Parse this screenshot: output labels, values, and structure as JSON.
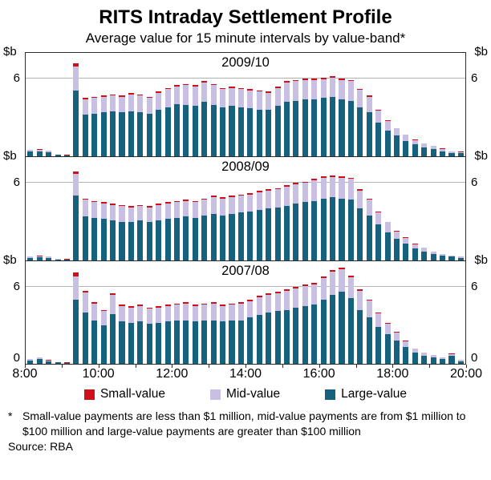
{
  "header": {
    "title": "RITS Intraday Settlement Profile",
    "subtitle": "Average value for 15 minute intervals by value-band*"
  },
  "colors": {
    "small": "#cf1019",
    "mid": "#c8bfe2",
    "large": "#16627e",
    "gridline": "#b3b3b3"
  },
  "y_axis": {
    "unit": "$b",
    "tick_label": "6",
    "zero_label": "0",
    "max": 8,
    "gridlines": [
      6
    ]
  },
  "x_axis": {
    "tick_labels": [
      "8:00",
      "10:00",
      "12:00",
      "14:00",
      "16:00",
      "18:00",
      "20:00"
    ]
  },
  "legend": {
    "items": [
      {
        "label": "Small-value",
        "color": "#cf1019"
      },
      {
        "label": "Mid-value",
        "color": "#c8bfe2"
      },
      {
        "label": "Large-value",
        "color": "#16627e"
      }
    ]
  },
  "footnote": {
    "marker": "*",
    "text": "Small-value payments are less than $1 million, mid-value payments are from $1 million to $100 million and large-value payments are greater than $100 million"
  },
  "source": "Source: RBA",
  "chart_data": [
    {
      "type": "bar",
      "stacked": true,
      "title": "2009/10",
      "x_start": "8:00",
      "x_end": "20:00",
      "interval_minutes": 15,
      "ylim": [
        0,
        8
      ],
      "ylabel": "$b",
      "series": [
        {
          "name": "Large-value",
          "color_key": "large",
          "values": [
            0.35,
            0.4,
            0.3,
            0.1,
            0.07,
            5.1,
            3.2,
            3.3,
            3.4,
            3.5,
            3.4,
            3.5,
            3.4,
            3.3,
            3.6,
            3.8,
            4.0,
            4.0,
            3.9,
            4.2,
            4.0,
            3.8,
            3.9,
            3.8,
            3.7,
            3.6,
            3.6,
            3.9,
            4.2,
            4.3,
            4.4,
            4.4,
            4.5,
            4.6,
            4.4,
            4.3,
            3.8,
            3.4,
            2.6,
            2.0,
            1.6,
            1.2,
            0.9,
            0.7,
            0.55,
            0.4,
            0.27,
            0.23
          ]
        },
        {
          "name": "Mid-value",
          "color_key": "mid",
          "values": [
            0.12,
            0.12,
            0.12,
            0.03,
            0.02,
            1.85,
            1.2,
            1.2,
            1.2,
            1.2,
            1.2,
            1.3,
            1.3,
            1.2,
            1.3,
            1.4,
            1.4,
            1.5,
            1.5,
            1.5,
            1.5,
            1.4,
            1.4,
            1.4,
            1.4,
            1.4,
            1.3,
            1.4,
            1.5,
            1.5,
            1.5,
            1.5,
            1.48,
            1.48,
            1.5,
            1.5,
            1.32,
            1.22,
            0.94,
            0.75,
            0.55,
            0.46,
            0.37,
            0.27,
            0.23,
            0.18,
            0.11,
            0.1
          ]
        },
        {
          "name": "Small-value",
          "color_key": "small",
          "values": [
            0.03,
            0.03,
            0.03,
            0.02,
            0.01,
            0.25,
            0.1,
            0.1,
            0.1,
            0.1,
            0.1,
            0.1,
            0.1,
            0.1,
            0.1,
            0.1,
            0.1,
            0.1,
            0.1,
            0.1,
            0.1,
            0.1,
            0.1,
            0.1,
            0.1,
            0.1,
            0.1,
            0.1,
            0.1,
            0.1,
            0.1,
            0.1,
            0.12,
            0.12,
            0.1,
            0.1,
            0.08,
            0.08,
            0.06,
            0.05,
            0.05,
            0.04,
            0.03,
            0.03,
            0.02,
            0.02,
            0.02,
            0.02
          ]
        }
      ]
    },
    {
      "type": "bar",
      "stacked": true,
      "title": "2008/09",
      "x_start": "8:00",
      "x_end": "20:00",
      "interval_minutes": 15,
      "ylim": [
        0,
        8
      ],
      "ylabel": "$b",
      "series": [
        {
          "name": "Large-value",
          "color_key": "large",
          "values": [
            0.2,
            0.25,
            0.2,
            0.08,
            0.07,
            5.0,
            3.4,
            3.3,
            3.2,
            3.1,
            3.0,
            3.0,
            3.1,
            3.0,
            3.1,
            3.2,
            3.3,
            3.4,
            3.3,
            3.5,
            3.6,
            3.5,
            3.6,
            3.7,
            3.8,
            3.9,
            4.0,
            4.1,
            4.2,
            4.4,
            4.5,
            4.6,
            4.8,
            4.9,
            4.8,
            4.7,
            4.0,
            3.5,
            2.8,
            2.2,
            1.7,
            1.3,
            0.9,
            0.7,
            0.5,
            0.35,
            0.28,
            0.2
          ]
        },
        {
          "name": "Mid-value",
          "color_key": "mid",
          "values": [
            0.08,
            0.08,
            0.08,
            0.03,
            0.02,
            1.68,
            1.3,
            1.2,
            1.2,
            1.2,
            1.2,
            1.1,
            1.1,
            1.1,
            1.2,
            1.2,
            1.2,
            1.2,
            1.2,
            1.2,
            1.3,
            1.3,
            1.3,
            1.3,
            1.3,
            1.4,
            1.4,
            1.4,
            1.5,
            1.5,
            1.5,
            1.58,
            1.58,
            1.58,
            1.6,
            1.6,
            1.42,
            1.22,
            0.94,
            0.75,
            0.56,
            0.46,
            0.37,
            0.27,
            0.18,
            0.13,
            0.1,
            0.09
          ]
        },
        {
          "name": "Small-value",
          "color_key": "small",
          "values": [
            0.02,
            0.02,
            0.02,
            0.01,
            0.01,
            0.22,
            0.1,
            0.1,
            0.1,
            0.1,
            0.1,
            0.1,
            0.1,
            0.1,
            0.1,
            0.1,
            0.1,
            0.1,
            0.1,
            0.1,
            0.1,
            0.1,
            0.1,
            0.1,
            0.1,
            0.1,
            0.1,
            0.1,
            0.1,
            0.1,
            0.1,
            0.12,
            0.12,
            0.12,
            0.1,
            0.1,
            0.08,
            0.08,
            0.06,
            0.05,
            0.04,
            0.04,
            0.03,
            0.03,
            0.02,
            0.02,
            0.02,
            0.01
          ]
        }
      ]
    },
    {
      "type": "bar",
      "stacked": true,
      "title": "2007/08",
      "x_start": "8:00",
      "x_end": "20:00",
      "interval_minutes": 15,
      "ylim": [
        0,
        8
      ],
      "ylabel": "$b",
      "series": [
        {
          "name": "Large-value",
          "color_key": "large",
          "values": [
            0.28,
            0.35,
            0.2,
            0.1,
            0.07,
            5.0,
            4.0,
            3.4,
            3.0,
            3.9,
            3.3,
            3.2,
            3.3,
            3.1,
            3.2,
            3.3,
            3.4,
            3.4,
            3.3,
            3.4,
            3.4,
            3.3,
            3.4,
            3.4,
            3.6,
            3.8,
            4.0,
            4.1,
            4.2,
            4.4,
            4.5,
            4.6,
            5.0,
            5.4,
            5.6,
            5.1,
            4.2,
            3.6,
            2.9,
            2.3,
            1.8,
            1.3,
            0.85,
            0.65,
            0.5,
            0.35,
            0.6,
            0.2
          ]
        },
        {
          "name": "Mid-value",
          "color_key": "mid",
          "values": [
            0.09,
            0.12,
            0.08,
            0.04,
            0.02,
            1.8,
            1.55,
            1.28,
            1.1,
            1.48,
            1.2,
            1.2,
            1.2,
            1.2,
            1.2,
            1.2,
            1.2,
            1.3,
            1.2,
            1.2,
            1.3,
            1.2,
            1.2,
            1.3,
            1.3,
            1.4,
            1.4,
            1.4,
            1.5,
            1.5,
            1.58,
            1.58,
            1.67,
            1.76,
            1.76,
            1.68,
            1.5,
            1.32,
            1.03,
            0.84,
            0.65,
            0.46,
            0.32,
            0.23,
            0.18,
            0.13,
            0.18,
            0.09
          ]
        },
        {
          "name": "Small-value",
          "color_key": "small",
          "values": [
            0.03,
            0.03,
            0.02,
            0.01,
            0.01,
            0.3,
            0.15,
            0.12,
            0.1,
            0.12,
            0.1,
            0.1,
            0.1,
            0.1,
            0.1,
            0.1,
            0.1,
            0.1,
            0.1,
            0.1,
            0.1,
            0.1,
            0.1,
            0.1,
            0.1,
            0.1,
            0.1,
            0.1,
            0.1,
            0.1,
            0.12,
            0.12,
            0.13,
            0.14,
            0.14,
            0.12,
            0.1,
            0.08,
            0.07,
            0.06,
            0.05,
            0.04,
            0.03,
            0.02,
            0.02,
            0.02,
            0.02,
            0.01
          ]
        }
      ]
    }
  ]
}
